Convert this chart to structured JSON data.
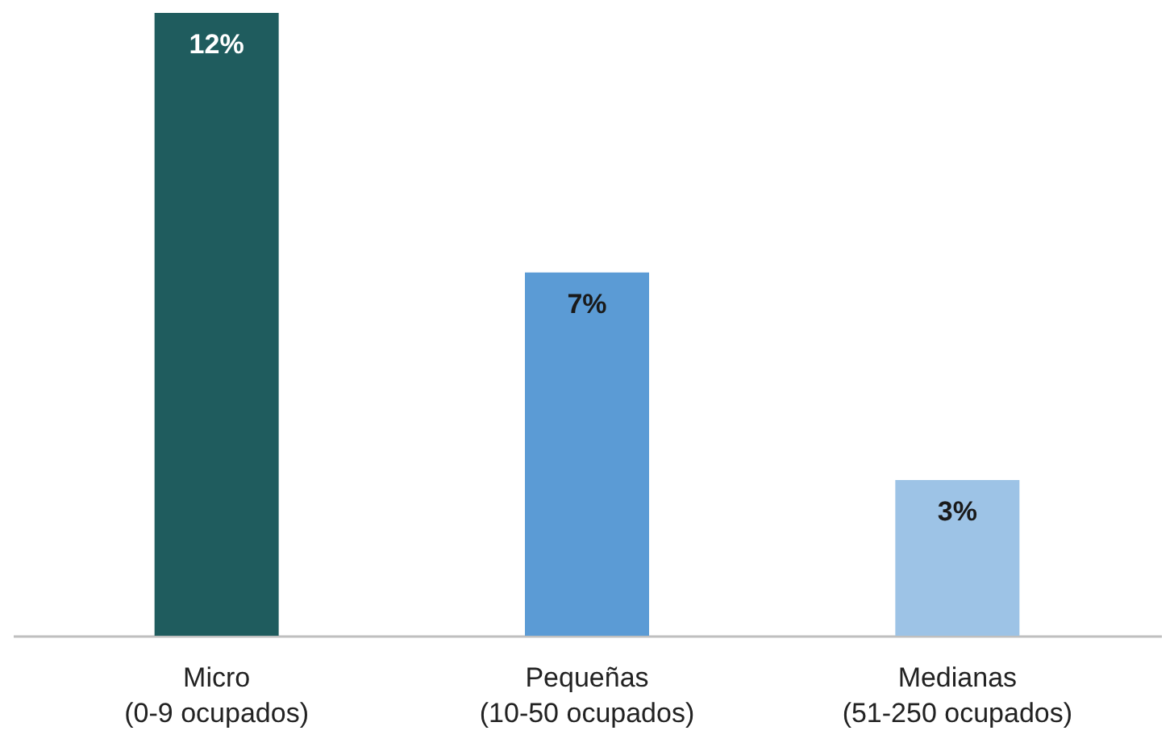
{
  "chart_data": {
    "type": "bar",
    "categories": [
      "Micro\n(0-9 ocupados)",
      "Pequeñas\n(10-50 ocupados)",
      "Medianas\n(51-250 ocupados)"
    ],
    "values": [
      12,
      7,
      3
    ],
    "colors": [
      "#1f5c5e",
      "#5b9bd5",
      "#9dc3e6"
    ],
    "value_labels": [
      "12%",
      "7%",
      "3%"
    ]
  }
}
